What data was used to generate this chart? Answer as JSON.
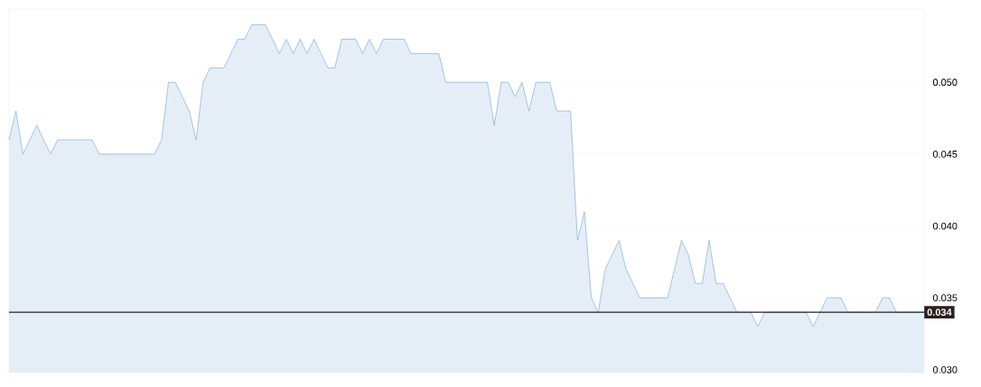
{
  "chart_data": {
    "type": "area",
    "categories": [
      null,
      null,
      null,
      null,
      null,
      null,
      null,
      null,
      null,
      null,
      null,
      null,
      null,
      null,
      null,
      null,
      null,
      null,
      null,
      null,
      null,
      null,
      null,
      null,
      null,
      null,
      null,
      null,
      null,
      null,
      null,
      null,
      null,
      null,
      null,
      null,
      null,
      null,
      null,
      null,
      null,
      null,
      null,
      null,
      null,
      null,
      null,
      null,
      null,
      null,
      null,
      null,
      null,
      null,
      null,
      null,
      null,
      null,
      null,
      null,
      null,
      null,
      null,
      null,
      null,
      null,
      null,
      null,
      null,
      null,
      null,
      null,
      null,
      null,
      null,
      null,
      null,
      null,
      null,
      null,
      null,
      null,
      null,
      null,
      null,
      null,
      null,
      null,
      null,
      null,
      null,
      null,
      null,
      null,
      null,
      null,
      null,
      null,
      null,
      null,
      null,
      null,
      null,
      null,
      null,
      null,
      null,
      null,
      null,
      null,
      null,
      null,
      null,
      null,
      null,
      null,
      null,
      null,
      null,
      null,
      null,
      null,
      null,
      null,
      null,
      null,
      null,
      null,
      null,
      null,
      null,
      null,
      null
    ],
    "series": [
      {
        "color": "#6fa3d4",
        "values": [
          0.046,
          0.048,
          0.045,
          0.046,
          0.047,
          0.046,
          0.045,
          0.046,
          0.046,
          0.046,
          0.046,
          0.046,
          0.046,
          0.045,
          0.045,
          0.045,
          0.045,
          0.045,
          0.045,
          0.045,
          0.045,
          0.045,
          0.046,
          0.05,
          0.05,
          0.049,
          0.048,
          0.046,
          0.05,
          0.051,
          0.051,
          0.051,
          0.052,
          0.053,
          0.053,
          0.054,
          0.054,
          0.054,
          0.053,
          0.052,
          0.053,
          0.052,
          0.053,
          0.052,
          0.053,
          0.052,
          0.051,
          0.051,
          0.053,
          0.053,
          0.053,
          0.052,
          0.053,
          0.052,
          0.053,
          0.053,
          0.053,
          0.053,
          0.052,
          0.052,
          0.052,
          0.052,
          0.052,
          0.05,
          0.05,
          0.05,
          0.05,
          0.05,
          0.05,
          0.05,
          0.047,
          0.05,
          0.05,
          0.049,
          0.05,
          0.048,
          0.05,
          0.05,
          0.05,
          0.048,
          0.048,
          0.048,
          0.039,
          0.041,
          0.035,
          0.034,
          0.037,
          0.038,
          0.039,
          0.037,
          0.036,
          0.035,
          0.035,
          0.035,
          0.035,
          0.035,
          0.037,
          0.039,
          0.038,
          0.036,
          0.036,
          0.039,
          0.036,
          0.036,
          0.035,
          0.034,
          0.034,
          0.034,
          0.033,
          0.034,
          0.034,
          0.034,
          0.034,
          0.034,
          0.034,
          0.034,
          0.033,
          0.034,
          0.035,
          0.035,
          0.035,
          0.034,
          0.034,
          0.034,
          0.034,
          0.034,
          0.035,
          0.035,
          0.034,
          0.034,
          0.034,
          0.034,
          0.034
        ]
      }
    ],
    "ylim": [
      0.0298,
      0.0551
    ],
    "yticks": [
      {
        "value": 0.03,
        "label": "0.030"
      },
      {
        "value": 0.035,
        "label": "0.035"
      },
      {
        "value": 0.04,
        "label": "0.040"
      },
      {
        "value": 0.045,
        "label": "0.045"
      },
      {
        "value": 0.05,
        "label": "0.050"
      }
    ],
    "ref_lines": [
      {
        "axis": "y",
        "value": 0.034,
        "label": "0.034",
        "color": "#2b1f1f"
      }
    ],
    "grid": "y"
  }
}
